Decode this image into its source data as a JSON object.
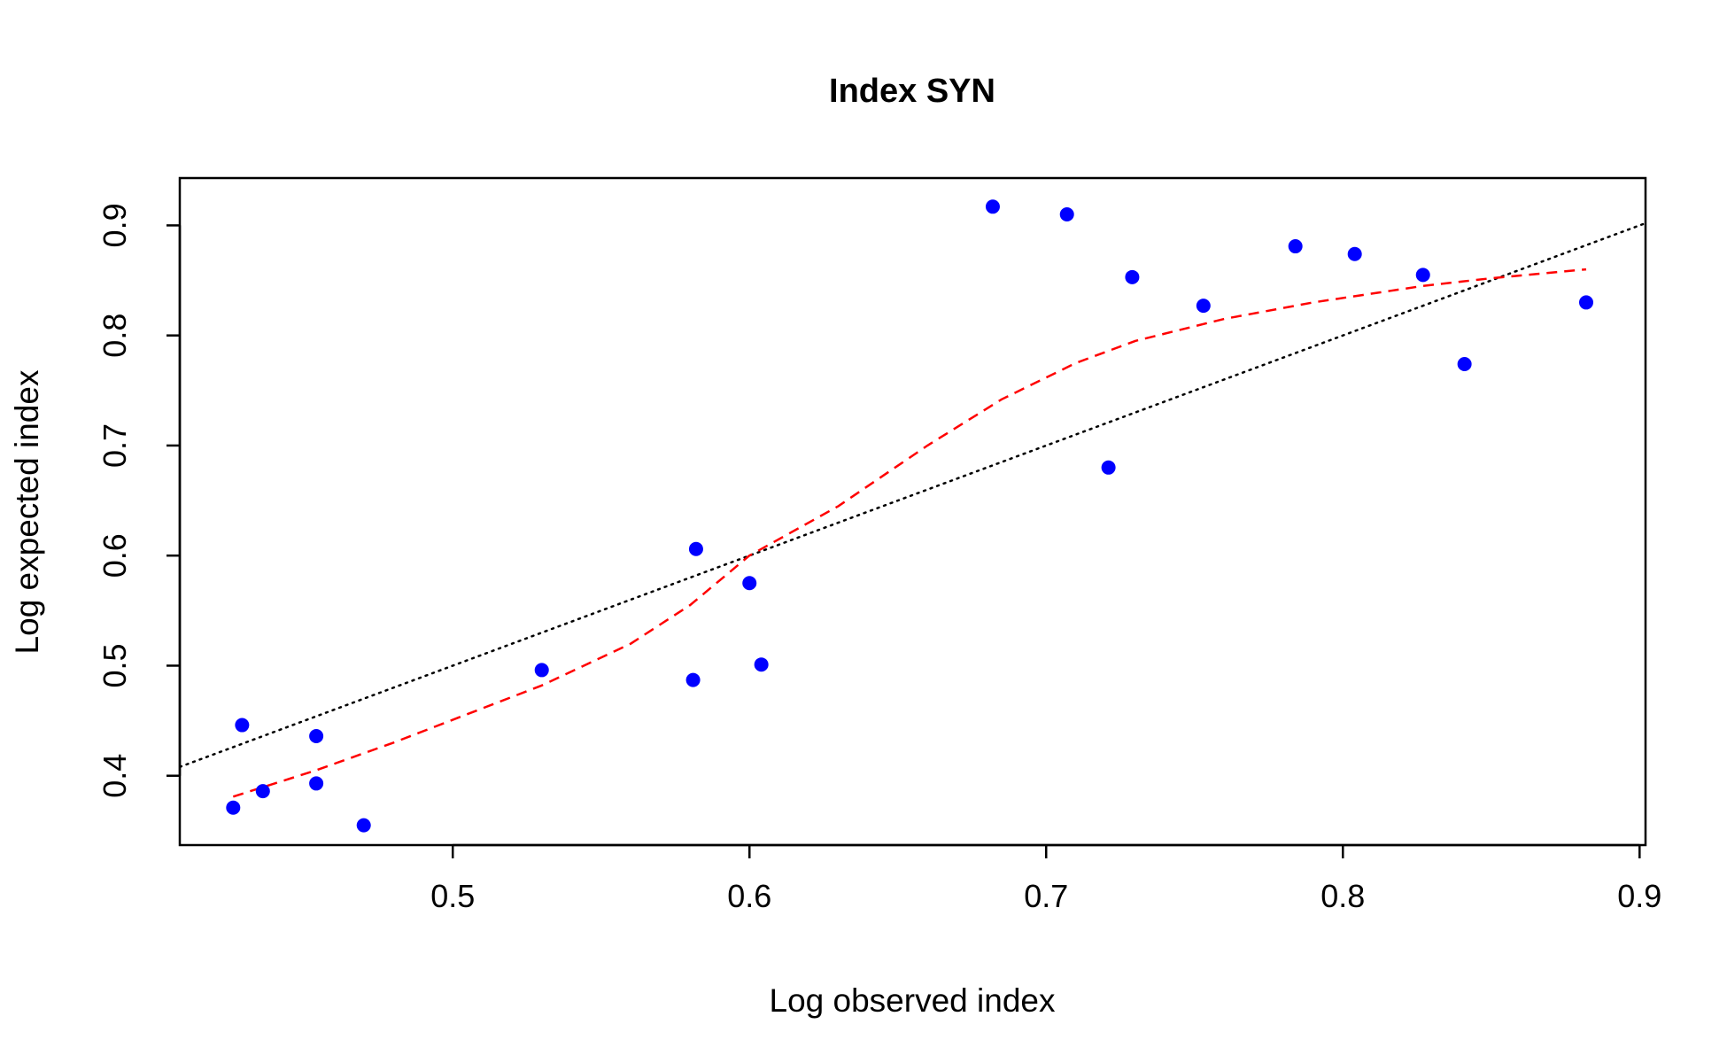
{
  "chart_data": {
    "type": "scatter",
    "title": "Index SYN",
    "xlabel": "Log observed index",
    "ylabel": "Log expected index",
    "xlim": [
      0.408,
      0.902
    ],
    "ylim": [
      0.337,
      0.943
    ],
    "x_ticks": [
      0.5,
      0.6,
      0.7,
      0.8,
      0.9
    ],
    "y_ticks": [
      0.4,
      0.5,
      0.6,
      0.7,
      0.8,
      0.9
    ],
    "x_tick_labels": [
      "0.5",
      "0.6",
      "0.7",
      "0.8",
      "0.9"
    ],
    "y_tick_labels": [
      "0.4",
      "0.5",
      "0.6",
      "0.7",
      "0.8",
      "0.9"
    ],
    "grid": false,
    "point_color": "#0000ff",
    "points": [
      {
        "x": 0.426,
        "y": 0.371
      },
      {
        "x": 0.429,
        "y": 0.446
      },
      {
        "x": 0.436,
        "y": 0.386
      },
      {
        "x": 0.454,
        "y": 0.393
      },
      {
        "x": 0.454,
        "y": 0.436
      },
      {
        "x": 0.47,
        "y": 0.355
      },
      {
        "x": 0.53,
        "y": 0.496
      },
      {
        "x": 0.581,
        "y": 0.487
      },
      {
        "x": 0.582,
        "y": 0.606
      },
      {
        "x": 0.6,
        "y": 0.575
      },
      {
        "x": 0.604,
        "y": 0.501
      },
      {
        "x": 0.682,
        "y": 0.917
      },
      {
        "x": 0.707,
        "y": 0.91
      },
      {
        "x": 0.721,
        "y": 0.68
      },
      {
        "x": 0.729,
        "y": 0.853
      },
      {
        "x": 0.753,
        "y": 0.827
      },
      {
        "x": 0.784,
        "y": 0.881
      },
      {
        "x": 0.804,
        "y": 0.874
      },
      {
        "x": 0.827,
        "y": 0.855
      },
      {
        "x": 0.841,
        "y": 0.774
      },
      {
        "x": 0.882,
        "y": 0.83
      }
    ],
    "reference_line": {
      "style": "dotted",
      "color": "#000000",
      "points": [
        {
          "x": 0.408,
          "y": 0.408
        },
        {
          "x": 0.902,
          "y": 0.902
        }
      ]
    },
    "smooth_line": {
      "style": "dashed",
      "color": "#ff0000",
      "points": [
        {
          "x": 0.426,
          "y": 0.381
        },
        {
          "x": 0.454,
          "y": 0.405
        },
        {
          "x": 0.48,
          "y": 0.43
        },
        {
          "x": 0.53,
          "y": 0.482
        },
        {
          "x": 0.56,
          "y": 0.52
        },
        {
          "x": 0.58,
          "y": 0.555
        },
        {
          "x": 0.6,
          "y": 0.6
        },
        {
          "x": 0.63,
          "y": 0.645
        },
        {
          "x": 0.66,
          "y": 0.7
        },
        {
          "x": 0.685,
          "y": 0.742
        },
        {
          "x": 0.71,
          "y": 0.775
        },
        {
          "x": 0.73,
          "y": 0.795
        },
        {
          "x": 0.76,
          "y": 0.815
        },
        {
          "x": 0.79,
          "y": 0.83
        },
        {
          "x": 0.827,
          "y": 0.845
        },
        {
          "x": 0.85,
          "y": 0.852
        },
        {
          "x": 0.882,
          "y": 0.86
        }
      ]
    }
  }
}
